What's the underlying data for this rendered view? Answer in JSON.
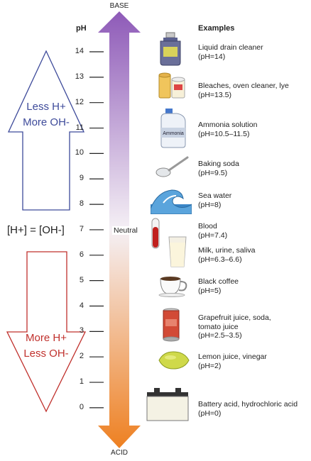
{
  "labels": {
    "base": "BASE",
    "acid": "ACID",
    "ph_header": "pH",
    "examples_header": "Examples",
    "neutral": "Neutral",
    "equal": "[H+] = [OH-]",
    "less_h": "Less H+",
    "more_oh": "More OH-",
    "more_h": "More H+",
    "less_oh": "Less OH-"
  },
  "ticks": [
    "0",
    "1",
    "2",
    "3",
    "4",
    "5",
    "6",
    "7",
    "8",
    "9",
    "10",
    "11",
    "12",
    "13",
    "14"
  ],
  "examples": [
    {
      "name": "Liquid drain cleaner",
      "ph": "(pH=14)",
      "icon": "drain-cleaner-bottle-icon"
    },
    {
      "name": "Bleaches, oven cleaner, lye",
      "ph": "(pH=13.5)",
      "icon": "bleach-cans-icon"
    },
    {
      "name": "Ammonia solution",
      "ph": "(pH=10.5–11.5)",
      "icon": "ammonia-jug-icon",
      "tag": "Ammonia"
    },
    {
      "name": "Baking soda",
      "ph": "(pH=9.5)",
      "icon": "spoon-icon"
    },
    {
      "name": "Sea water",
      "ph": "(pH=8)",
      "icon": "wave-icon"
    },
    {
      "name": "Blood",
      "ph": "(pH=7.4)",
      "icon": "blood-tube-icon"
    },
    {
      "name": "Milk, urine, saliva",
      "ph": "(pH=6.3–6.6)",
      "icon": "milk-glass-icon"
    },
    {
      "name": "Black coffee",
      "ph": "(pH=5)",
      "icon": "coffee-cup-icon"
    },
    {
      "name": "Grapefruit juice, soda,",
      "name2": "tomato juice",
      "ph": "(pH=2.5–3.5)",
      "icon": "soda-can-icon"
    },
    {
      "name": "Lemon juice, vinegar",
      "ph": "(pH=2)",
      "icon": "lemon-icon"
    },
    {
      "name": "Battery acid, hydrochloric acid",
      "ph": "(pH=0)",
      "icon": "battery-icon"
    }
  ],
  "colors": {
    "base_top": "#8e5ab8",
    "neutral_mid": "#f3eef4",
    "acid_bottom": "#ee8021",
    "up_arrow_stroke": "#3d4a9a",
    "down_arrow_stroke": "#c0302c"
  }
}
